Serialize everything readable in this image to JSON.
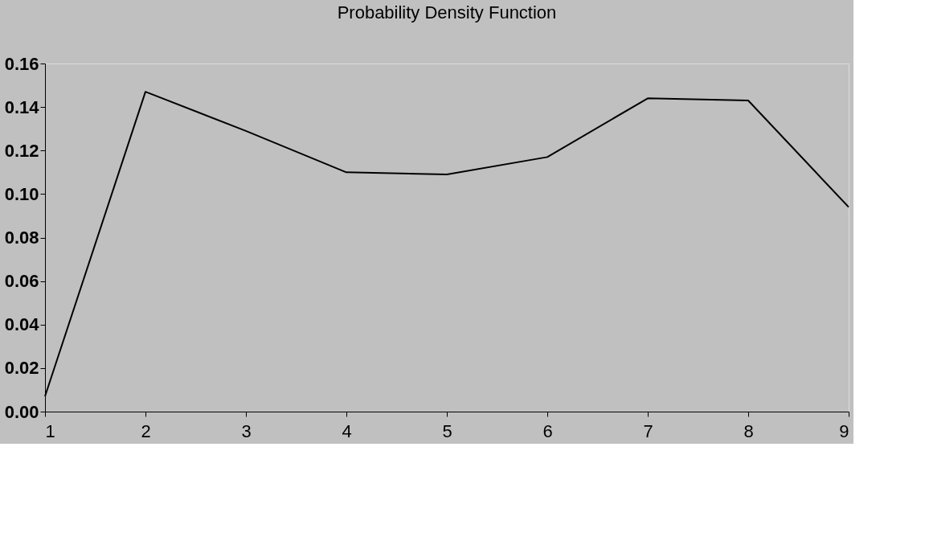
{
  "chart_data": {
    "type": "line",
    "title": "Probability Density Function",
    "x": [
      1,
      2,
      3,
      4,
      5,
      6,
      7,
      8,
      9
    ],
    "series": [
      {
        "color": "#000000",
        "values": [
          0.007,
          0.147,
          0.129,
          0.11,
          0.109,
          0.117,
          0.144,
          0.143,
          0.094
        ]
      }
    ],
    "xlim": [
      1,
      9
    ],
    "xticks": [
      1,
      2,
      3,
      4,
      5,
      6,
      7,
      8,
      9
    ],
    "ylim": [
      0,
      0.16
    ],
    "yticks": [
      {
        "value": 0,
        "label": "0.00"
      },
      {
        "value": 0.02,
        "label": "0.02"
      },
      {
        "value": 0.04,
        "label": "0.04"
      },
      {
        "value": 0.06,
        "label": "0.06"
      },
      {
        "value": 0.08,
        "label": "0.08"
      },
      {
        "value": 0.1,
        "label": "0.10"
      },
      {
        "value": 0.12,
        "label": "0.12"
      },
      {
        "value": 0.14,
        "label": "0.14"
      },
      {
        "value": 0.16,
        "label": "0.16"
      }
    ],
    "grid": false,
    "legend": false,
    "marker": "none",
    "line_style": "solid"
  }
}
